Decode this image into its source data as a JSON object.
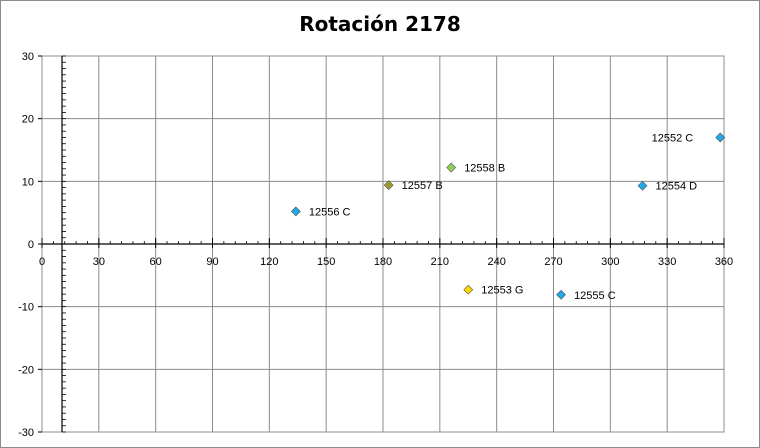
{
  "chart_data": {
    "type": "scatter",
    "title": "Rotación 2178",
    "xlabel": "",
    "ylabel": "",
    "xlim": [
      0,
      360
    ],
    "ylim": [
      -30,
      30
    ],
    "x_ticks": [
      0,
      30,
      60,
      90,
      120,
      150,
      180,
      210,
      240,
      270,
      300,
      330,
      360
    ],
    "y_ticks": [
      -30,
      -20,
      -10,
      0,
      10,
      20,
      30
    ],
    "grid": true,
    "legend": "none",
    "points": [
      {
        "label": "12552 C",
        "x": 358,
        "y": 17,
        "color": "#1fa9e6",
        "label_side": "left"
      },
      {
        "label": "12558 B",
        "x": 216,
        "y": 12.2,
        "color": "#92d050",
        "label_side": "right"
      },
      {
        "label": "12557 B",
        "x": 183,
        "y": 9.4,
        "color": "#9b9b30",
        "label_side": "right"
      },
      {
        "label": "12554 D",
        "x": 317,
        "y": 9.3,
        "color": "#1fa9e6",
        "label_side": "right"
      },
      {
        "label": "12556 C",
        "x": 134,
        "y": 5.2,
        "color": "#1fa9e6",
        "label_side": "right"
      },
      {
        "label": "12553 G",
        "x": 225,
        "y": -7.3,
        "color": "#ffd700",
        "label_side": "right"
      },
      {
        "label": "12555 C",
        "x": 274,
        "y": -8.1,
        "color": "#1fa9e6",
        "label_side": "right"
      }
    ]
  }
}
